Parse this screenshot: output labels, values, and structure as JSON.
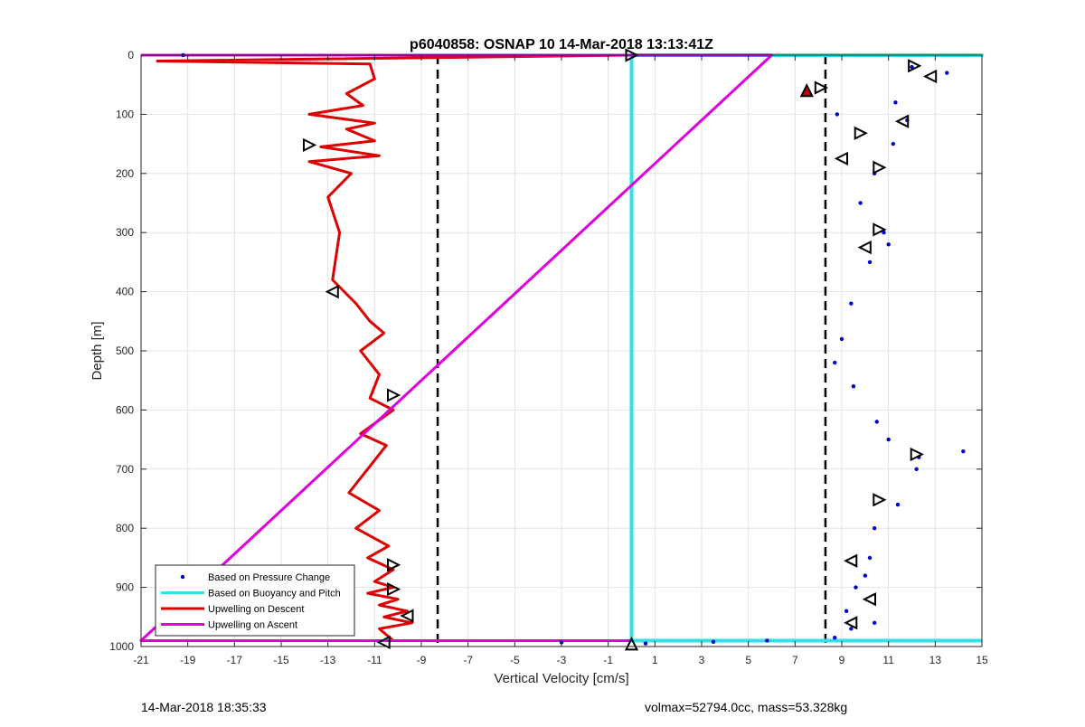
{
  "chart_data": {
    "type": "line",
    "title": "p6040858: OSNAP 10 14-Mar-2018 13:13:41Z",
    "xlabel": "Vertical Velocity [cm/s]",
    "ylabel": "Depth [m]",
    "xlim": [
      -21,
      15
    ],
    "ylim": [
      0,
      1000
    ],
    "y_reversed": true,
    "grid": true,
    "legend_position": "bottom-left",
    "xticks": [
      -21,
      -19,
      -17,
      -15,
      -13,
      -11,
      -9,
      -7,
      -5,
      -3,
      -1,
      1,
      3,
      5,
      7,
      9,
      11,
      13,
      15
    ],
    "yticks": [
      0,
      100,
      200,
      300,
      400,
      500,
      600,
      700,
      800,
      900,
      1000
    ],
    "legend": [
      {
        "label": "Based on Pressure Change",
        "style": "dots",
        "color": "#0000cc"
      },
      {
        "label": "Based on Buoyancy and Pitch",
        "style": "line",
        "color": "#33e0e8"
      },
      {
        "label": "Upwelling on Descent",
        "style": "line",
        "color": "#dd0000"
      },
      {
        "label": "Upwelling on Ascent",
        "style": "line",
        "color": "#dd00dd"
      }
    ],
    "reference_lines": [
      {
        "axis": "x",
        "value": -8.3,
        "style": "dashed",
        "color": "#000000"
      },
      {
        "axis": "x",
        "value": 8.3,
        "style": "dashed",
        "color": "#000000"
      }
    ],
    "series": [
      {
        "name": "Based on Buoyancy and Pitch",
        "color": "#33e0e8",
        "x": [
          6,
          15,
          0,
          0,
          0,
          15
        ],
        "y": [
          0,
          0,
          0,
          990,
          990,
          990
        ]
      },
      {
        "name": "Upwelling on Descent",
        "color": "#dd0000",
        "x": [
          0,
          -20.3,
          -11.2,
          -11,
          -12.2,
          -11.5,
          -13.8,
          -11,
          -12.2,
          -11,
          -13.3,
          -10.8,
          -13.8,
          -12,
          -13,
          -12.5,
          -12.8,
          -11.8,
          -11.2,
          -10.6,
          -11.6,
          -10.8,
          -11.2,
          -10.2,
          -11.6,
          -10.5,
          -11.3,
          -12.1,
          -10.8,
          -11.8,
          -10.4,
          -11.3,
          -10.2,
          -11,
          -10.2,
          -11.3,
          -10,
          -10.8,
          -9.6,
          -10.6,
          -9.4,
          -10.8,
          -10.2,
          0
        ],
        "y": [
          0,
          10,
          15,
          40,
          65,
          85,
          100,
          115,
          125,
          145,
          155,
          170,
          180,
          200,
          240,
          300,
          380,
          420,
          450,
          470,
          500,
          540,
          580,
          600,
          640,
          660,
          700,
          740,
          770,
          800,
          830,
          850,
          870,
          890,
          900,
          910,
          920,
          930,
          940,
          950,
          960,
          970,
          990,
          990
        ]
      },
      {
        "name": "Upwelling on Ascent",
        "color": "#dd00dd",
        "x": [
          -21,
          6,
          -21,
          -10.8,
          -5,
          0
        ],
        "y": [
          0,
          0,
          990,
          990,
          990,
          990
        ]
      },
      {
        "name": "Based on Pressure Change",
        "color": "#0000cc",
        "style": "dots",
        "x": [
          -19.2,
          12,
          13.5,
          11.3,
          8.8,
          11.8,
          11.2,
          10.4,
          9.8,
          10.8,
          11,
          10.2,
          9.4,
          9,
          8.7,
          9.5,
          10.5,
          11,
          12.3,
          14.2,
          12.2,
          11.4,
          10.4,
          10.2,
          10,
          9.6,
          9.2,
          10.4,
          9.4,
          8.7,
          5.8,
          3.5,
          -3,
          0.6
        ],
        "y": [
          0,
          20,
          30,
          80,
          100,
          110,
          150,
          200,
          250,
          300,
          320,
          350,
          420,
          480,
          520,
          560,
          620,
          650,
          680,
          670,
          700,
          760,
          800,
          850,
          880,
          900,
          940,
          960,
          970,
          985,
          990,
          992,
          993,
          995
        ]
      }
    ],
    "markers": [
      {
        "type": "triangle-right",
        "x": 12.1,
        "y": 18,
        "color": "#000000"
      },
      {
        "type": "triangle-left",
        "x": 12.8,
        "y": 36,
        "color": "#000000"
      },
      {
        "type": "triangle-right",
        "x": 8.1,
        "y": 55,
        "color": "#000000"
      },
      {
        "type": "triangle-up",
        "x": 7.5,
        "y": 60,
        "color": "#cc0000"
      },
      {
        "type": "triangle-left",
        "x": 11.6,
        "y": 112,
        "color": "#000000"
      },
      {
        "type": "triangle-right",
        "x": 9.8,
        "y": 132,
        "color": "#000000"
      },
      {
        "type": "triangle-left",
        "x": 9,
        "y": 175,
        "color": "#000000"
      },
      {
        "type": "triangle-right",
        "x": 10.6,
        "y": 190,
        "color": "#000000"
      },
      {
        "type": "triangle-right",
        "x": 10.6,
        "y": 295,
        "color": "#000000"
      },
      {
        "type": "triangle-left",
        "x": 10,
        "y": 325,
        "color": "#000000"
      },
      {
        "type": "triangle-right",
        "x": 12.2,
        "y": 675,
        "color": "#000000"
      },
      {
        "type": "triangle-right",
        "x": 10.6,
        "y": 752,
        "color": "#000000"
      },
      {
        "type": "triangle-left",
        "x": 9.4,
        "y": 855,
        "color": "#000000"
      },
      {
        "type": "triangle-left",
        "x": 10.2,
        "y": 920,
        "color": "#000000"
      },
      {
        "type": "triangle-left",
        "x": 9.4,
        "y": 960,
        "color": "#000000"
      },
      {
        "type": "triangle-right",
        "x": -13.8,
        "y": 152,
        "color": "#000000"
      },
      {
        "type": "triangle-left",
        "x": -12.8,
        "y": 400,
        "color": "#000000"
      },
      {
        "type": "triangle-right",
        "x": -10.2,
        "y": 575,
        "color": "#000000"
      },
      {
        "type": "triangle-right",
        "x": -10.2,
        "y": 862,
        "color": "#000000"
      },
      {
        "type": "triangle-right",
        "x": -10.2,
        "y": 903,
        "color": "#000000"
      },
      {
        "type": "triangle-left",
        "x": -9.6,
        "y": 948,
        "color": "#000000"
      },
      {
        "type": "triangle-left",
        "x": -10.6,
        "y": 993,
        "color": "#000000"
      },
      {
        "type": "triangle-right",
        "x": 0,
        "y": 0,
        "color": "#000000"
      },
      {
        "type": "triangle-up",
        "x": 0,
        "y": 996,
        "color": "#000000"
      }
    ]
  },
  "footer": {
    "timestamp": "14-Mar-2018 18:35:33",
    "params": "volmax=52794.0cc, mass=53.328kg"
  }
}
